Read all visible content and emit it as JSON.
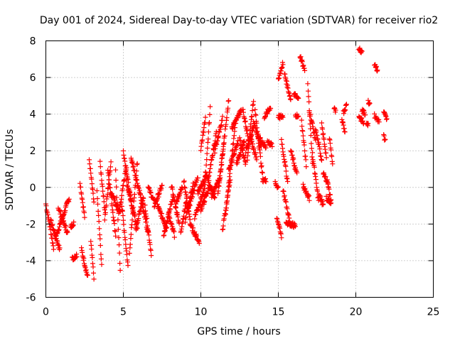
{
  "chart_data": {
    "type": "scatter",
    "title": "Day 001 of 2024, Sidereal Day-to-day VTEC variation (SDTVAR) for receiver rio2",
    "xlabel": "GPS time / hours",
    "ylabel": "SDTVAR / TECUs",
    "xlim": [
      0,
      25
    ],
    "ylim": [
      -6,
      8
    ],
    "xticks": [
      0,
      5,
      10,
      15,
      20,
      25
    ],
    "yticks": [
      -6,
      -4,
      -2,
      0,
      2,
      4,
      6,
      8
    ],
    "grid": true,
    "marker": "plus",
    "color": "#ff0000",
    "tracks": [
      {
        "t0": 0.0,
        "t1": 0.5,
        "v0": -0.9,
        "v1": -3.3
      },
      {
        "t0": 0.3,
        "t1": 0.9,
        "v0": -1.8,
        "v1": -3.4
      },
      {
        "t0": 0.6,
        "t1": 1.5,
        "v0": -2.8,
        "v1": -0.6
      },
      {
        "t0": 0.8,
        "t1": 1.4,
        "v0": -1.1,
        "v1": -2.5
      },
      {
        "t0": 1.6,
        "t1": 1.8,
        "v0": -2.2,
        "v1": -1.9
      },
      {
        "t0": 1.7,
        "t1": 2.0,
        "v0": -3.9,
        "v1": -3.7
      },
      {
        "t0": 2.2,
        "t1": 2.5,
        "v0": 0.3,
        "v1": -1.6
      },
      {
        "t0": 2.3,
        "t1": 2.7,
        "v0": -3.4,
        "v1": -4.9
      },
      {
        "t0": 2.8,
        "t1": 3.1,
        "v0": 1.5,
        "v1": -0.8
      },
      {
        "t0": 2.9,
        "t1": 3.1,
        "v0": -3.0,
        "v1": -4.9
      },
      {
        "t0": 3.3,
        "t1": 3.6,
        "v0": -0.3,
        "v1": -4.2
      },
      {
        "t0": 3.5,
        "t1": 3.8,
        "v0": 1.3,
        "v1": -1.2
      },
      {
        "t0": 3.8,
        "t1": 4.2,
        "v0": -1.7,
        "v1": 1.4
      },
      {
        "t0": 4.0,
        "t1": 4.5,
        "v0": 1.0,
        "v1": -2.6
      },
      {
        "t0": 4.2,
        "t1": 4.8,
        "v0": -0.3,
        "v1": -1.4
      },
      {
        "t0": 4.5,
        "t1": 4.8,
        "v0": 0.9,
        "v1": -4.5
      },
      {
        "t0": 4.7,
        "t1": 5.2,
        "v0": -1.5,
        "v1": 1.2
      },
      {
        "t0": 4.9,
        "t1": 5.3,
        "v0": -1.0,
        "v1": -4.3
      },
      {
        "t0": 5.0,
        "t1": 5.5,
        "v0": 2.0,
        "v1": -0.8
      },
      {
        "t0": 5.2,
        "t1": 5.9,
        "v0": 0.3,
        "v1": -2.2
      },
      {
        "t0": 5.4,
        "t1": 5.9,
        "v0": -3.5,
        "v1": 1.4
      },
      {
        "t0": 5.5,
        "t1": 6.1,
        "v0": 1.6,
        "v1": -0.4
      },
      {
        "t0": 5.8,
        "t1": 6.3,
        "v0": -2.3,
        "v1": -0.5
      },
      {
        "t0": 6.1,
        "t1": 6.6,
        "v0": -0.4,
        "v1": -2.5
      },
      {
        "t0": 6.4,
        "t1": 6.8,
        "v0": -1.0,
        "v1": -3.6
      },
      {
        "t0": 6.6,
        "t1": 7.0,
        "v0": 0.0,
        "v1": -0.8
      },
      {
        "t0": 7.0,
        "t1": 7.5,
        "v0": -1.0,
        "v1": 0.1
      },
      {
        "t0": 7.2,
        "t1": 7.8,
        "v0": -1.0,
        "v1": -2.2
      },
      {
        "t0": 7.6,
        "t1": 8.2,
        "v0": -2.6,
        "v1": -0.5
      },
      {
        "t0": 7.9,
        "t1": 8.3,
        "v0": -1.5,
        "v1": -2.6
      },
      {
        "t0": 8.1,
        "t1": 8.6,
        "v0": 0.1,
        "v1": -2.0
      },
      {
        "t0": 8.4,
        "t1": 8.8,
        "v0": -0.8,
        "v1": 0.0
      },
      {
        "t0": 8.7,
        "t1": 9.1,
        "v0": -2.4,
        "v1": -0.6
      },
      {
        "t0": 8.9,
        "t1": 9.3,
        "v0": 0.4,
        "v1": -1.8
      },
      {
        "t0": 9.0,
        "t1": 9.5,
        "v0": -1.8,
        "v1": 0.2
      },
      {
        "t0": 9.2,
        "t1": 9.8,
        "v0": -1.2,
        "v1": 0.6
      },
      {
        "t0": 9.3,
        "t1": 9.9,
        "v0": -2.0,
        "v1": -3.0
      },
      {
        "t0": 9.6,
        "t1": 10.2,
        "v0": -1.6,
        "v1": -0.2
      },
      {
        "t0": 9.8,
        "t1": 10.4,
        "v0": -0.3,
        "v1": 0.7
      },
      {
        "t0": 10.0,
        "t1": 10.3,
        "v0": 2.1,
        "v1": 3.8
      },
      {
        "t0": 10.0,
        "t1": 10.6,
        "v0": -1.2,
        "v1": 0.1
      },
      {
        "t0": 10.2,
        "t1": 10.6,
        "v0": -0.8,
        "v1": 4.3
      },
      {
        "t0": 10.3,
        "t1": 10.9,
        "v0": 0.8,
        "v1": -0.6
      },
      {
        "t0": 10.5,
        "t1": 11.0,
        "v0": 0.5,
        "v1": 3.0
      },
      {
        "t0": 10.7,
        "t1": 11.2,
        "v0": -0.5,
        "v1": 0.5
      },
      {
        "t0": 10.9,
        "t1": 11.4,
        "v0": 2.0,
        "v1": 3.8
      },
      {
        "t0": 11.1,
        "t1": 11.5,
        "v0": -0.4,
        "v1": 2.6
      },
      {
        "t0": 11.2,
        "t1": 11.8,
        "v0": 0.2,
        "v1": 4.8
      },
      {
        "t0": 11.4,
        "t1": 11.9,
        "v0": -2.3,
        "v1": 0.5
      },
      {
        "t0": 11.6,
        "t1": 12.2,
        "v0": -1.4,
        "v1": 3.2
      },
      {
        "t0": 11.8,
        "t1": 12.4,
        "v0": 1.0,
        "v1": 2.5
      },
      {
        "t0": 12.0,
        "t1": 12.6,
        "v0": 3.2,
        "v1": 4.2
      },
      {
        "t0": 12.3,
        "t1": 12.8,
        "v0": 1.3,
        "v1": 2.5
      },
      {
        "t0": 12.5,
        "t1": 12.9,
        "v0": 2.6,
        "v1": 1.3
      },
      {
        "t0": 12.7,
        "t1": 13.1,
        "v0": 4.3,
        "v1": 2.5
      },
      {
        "t0": 12.9,
        "t1": 13.4,
        "v0": 2.0,
        "v1": 3.3
      },
      {
        "t0": 13.0,
        "t1": 13.4,
        "v0": 1.6,
        "v1": 4.8
      },
      {
        "t0": 13.2,
        "t1": 13.6,
        "v0": 2.7,
        "v1": 1.6
      },
      {
        "t0": 13.4,
        "t1": 13.9,
        "v0": 3.6,
        "v1": 2.2
      },
      {
        "t0": 13.5,
        "t1": 14.0,
        "v0": 4.2,
        "v1": 0.5
      },
      {
        "t0": 13.7,
        "t1": 14.2,
        "v0": 2.8,
        "v1": 2.2
      },
      {
        "t0": 14.0,
        "t1": 14.2,
        "v0": 0.4,
        "v1": 0.4
      },
      {
        "t0": 14.1,
        "t1": 14.5,
        "v0": 3.8,
        "v1": 4.4
      },
      {
        "t0": 14.3,
        "t1": 14.6,
        "v0": 2.5,
        "v1": 2.3
      },
      {
        "t0": 14.8,
        "t1": 15.0,
        "v0": 0.2,
        "v1": 0.0
      },
      {
        "t0": 14.9,
        "t1": 15.2,
        "v0": -1.6,
        "v1": -2.7
      },
      {
        "t0": 15.0,
        "t1": 15.3,
        "v0": 5.9,
        "v1": 6.8
      },
      {
        "t0": 15.0,
        "t1": 15.3,
        "v0": 3.8,
        "v1": 3.9
      },
      {
        "t0": 15.2,
        "t1": 15.6,
        "v0": 2.6,
        "v1": 0.3
      },
      {
        "t0": 15.3,
        "t1": 15.7,
        "v0": -0.1,
        "v1": -1.7
      },
      {
        "t0": 15.4,
        "t1": 15.8,
        "v0": 6.2,
        "v1": 4.8
      },
      {
        "t0": 15.5,
        "t1": 16.1,
        "v0": -1.9,
        "v1": -2.1
      },
      {
        "t0": 15.8,
        "t1": 16.2,
        "v0": 2.0,
        "v1": 0.7
      },
      {
        "t0": 16.0,
        "t1": 16.3,
        "v0": 5.1,
        "v1": 4.8
      },
      {
        "t0": 16.1,
        "t1": 16.3,
        "v0": 4.0,
        "v1": 3.8
      },
      {
        "t0": 16.4,
        "t1": 16.7,
        "v0": 7.2,
        "v1": 6.4
      },
      {
        "t0": 16.5,
        "t1": 16.8,
        "v0": 3.6,
        "v1": 1.2
      },
      {
        "t0": 16.6,
        "t1": 17.0,
        "v0": 0.1,
        "v1": -0.6
      },
      {
        "t0": 16.9,
        "t1": 17.2,
        "v0": 5.7,
        "v1": 1.3
      },
      {
        "t0": 17.0,
        "t1": 17.4,
        "v0": 4.2,
        "v1": 2.6
      },
      {
        "t0": 17.2,
        "t1": 17.6,
        "v0": 1.8,
        "v1": -0.8
      },
      {
        "t0": 17.4,
        "t1": 17.8,
        "v0": 3.2,
        "v1": 1.5
      },
      {
        "t0": 17.6,
        "t1": 17.9,
        "v0": -0.3,
        "v1": -1.0
      },
      {
        "t0": 17.8,
        "t1": 18.1,
        "v0": 3.4,
        "v1": 1.7
      },
      {
        "t0": 17.9,
        "t1": 18.2,
        "v0": 0.7,
        "v1": 0.3
      },
      {
        "t0": 18.1,
        "t1": 18.4,
        "v0": -0.6,
        "v1": -0.8
      },
      {
        "t0": 18.2,
        "t1": 18.4,
        "v0": 0.1,
        "v1": -0.7
      },
      {
        "t0": 18.3,
        "t1": 18.5,
        "v0": 2.7,
        "v1": 1.3
      },
      {
        "t0": 18.6,
        "t1": 18.7,
        "v0": 4.3,
        "v1": 4.1
      },
      {
        "t0": 19.1,
        "t1": 19.3,
        "v0": 3.6,
        "v1": 3.1
      },
      {
        "t0": 19.2,
        "t1": 19.4,
        "v0": 4.1,
        "v1": 4.5
      },
      {
        "t0": 20.2,
        "t1": 20.4,
        "v0": 7.6,
        "v1": 7.4
      },
      {
        "t0": 20.2,
        "t1": 20.5,
        "v0": 3.9,
        "v1": 3.5
      },
      {
        "t0": 20.4,
        "t1": 20.6,
        "v0": 4.2,
        "v1": 4.0
      },
      {
        "t0": 20.7,
        "t1": 20.8,
        "v0": 3.6,
        "v1": 3.4
      },
      {
        "t0": 20.8,
        "t1": 20.9,
        "v0": 4.7,
        "v1": 4.6
      },
      {
        "t0": 21.2,
        "t1": 21.4,
        "v0": 6.8,
        "v1": 6.4
      },
      {
        "t0": 21.2,
        "t1": 21.5,
        "v0": 3.9,
        "v1": 3.6
      },
      {
        "t0": 21.8,
        "t1": 22.0,
        "v0": 4.1,
        "v1": 3.7
      },
      {
        "t0": 21.8,
        "t1": 21.9,
        "v0": 2.8,
        "v1": 2.6
      }
    ]
  }
}
